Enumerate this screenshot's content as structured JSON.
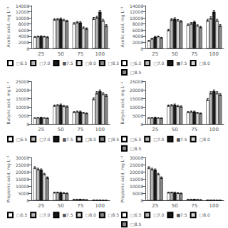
{
  "chart_data": [
    {
      "type": "bar",
      "y_label": "Acetic acid, mg L⁻¹",
      "categories": [
        "25",
        "50",
        "75",
        "100"
      ],
      "ylim": [
        0,
        14000
      ],
      "yticks": [
        0,
        2000,
        4000,
        6000,
        8000,
        10000,
        12000,
        14000
      ],
      "grid": false,
      "legend": "bottom",
      "series": [
        {
          "name": "□6.5",
          "color": "white",
          "values": [
            3800,
            9500,
            8200,
            9800
          ],
          "errors": [
            150,
            250,
            250,
            350
          ]
        },
        {
          "name": "□7.0",
          "color": "#b8b8b8",
          "values": [
            3900,
            9600,
            8600,
            10200
          ],
          "errors": [
            150,
            250,
            250,
            350
          ]
        },
        {
          "name": "■7.5",
          "color": "#1a1a1a",
          "values": [
            4000,
            9700,
            8500,
            12000
          ],
          "errors": [
            150,
            300,
            280,
            450
          ]
        },
        {
          "name": "□8.0",
          "color": "#d8d8d8",
          "values": [
            3900,
            9300,
            6800,
            9200
          ],
          "errors": [
            150,
            250,
            250,
            350
          ]
        },
        {
          "name": "□8.5",
          "color": "#888888",
          "values": [
            3700,
            9000,
            6500,
            7500
          ],
          "errors": [
            150,
            250,
            250,
            300
          ]
        }
      ]
    },
    {
      "type": "bar",
      "y_label": "Acetic acid, mg L⁻¹",
      "categories": [
        "25",
        "50",
        "75",
        "100"
      ],
      "ylim": [
        0,
        14000
      ],
      "yticks": [
        0,
        2000,
        4000,
        6000,
        8000,
        10000,
        12000,
        14000
      ],
      "grid": false,
      "legend": "bottom",
      "series": [
        {
          "name": "□6.5",
          "color": "white",
          "values": [
            2500,
            6000,
            7800,
            9200
          ],
          "errors": [
            150,
            250,
            250,
            350
          ]
        },
        {
          "name": "□7.0",
          "color": "#b8b8b8",
          "values": [
            3200,
            9500,
            8200,
            10000
          ],
          "errors": [
            150,
            350,
            280,
            400
          ]
        },
        {
          "name": "■7.5",
          "color": "#1a1a1a",
          "values": [
            3800,
            9700,
            8700,
            12000
          ],
          "errors": [
            150,
            350,
            280,
            450
          ]
        },
        {
          "name": "□8.0",
          "color": "#d8d8d8",
          "values": [
            3900,
            9200,
            7500,
            9200
          ],
          "errors": [
            150,
            250,
            250,
            350
          ]
        },
        {
          "name": "□8.5",
          "color": "#888888",
          "values": [
            3500,
            8900,
            7000,
            7500
          ],
          "errors": [
            150,
            250,
            250,
            300
          ]
        }
      ]
    },
    {
      "type": "bar",
      "y_label": "Butyric acid, mg L⁻¹",
      "categories": [
        "25",
        "50",
        "75",
        "100"
      ],
      "ylim": [
        0,
        25000
      ],
      "yticks": [
        0,
        5000,
        10000,
        15000,
        20000,
        25000
      ],
      "grid": false,
      "legend": "bottom",
      "series": [
        {
          "name": "□6.5",
          "color": "white",
          "values": [
            3800,
            11000,
            7200,
            15000
          ],
          "errors": [
            200,
            400,
            300,
            600
          ]
        },
        {
          "name": "□7.0",
          "color": "#b8b8b8",
          "values": [
            3900,
            11200,
            7500,
            18500
          ],
          "errors": [
            200,
            400,
            300,
            700
          ]
        },
        {
          "name": "■7.5",
          "color": "#1a1a1a",
          "values": [
            4100,
            11500,
            7500,
            19500
          ],
          "errors": [
            200,
            450,
            300,
            700
          ]
        },
        {
          "name": "□8.0",
          "color": "#d8d8d8",
          "values": [
            3800,
            10800,
            6800,
            18000
          ],
          "errors": [
            200,
            400,
            300,
            650
          ]
        },
        {
          "name": "□8.5",
          "color": "#888888",
          "values": [
            3700,
            10500,
            6500,
            17000
          ],
          "errors": [
            200,
            400,
            300,
            600
          ]
        }
      ]
    },
    {
      "type": "bar",
      "y_label": "Butyric acid, mg L⁻¹",
      "categories": [
        "25",
        "50",
        "75",
        "100"
      ],
      "ylim": [
        0,
        25000
      ],
      "yticks": [
        0,
        5000,
        10000,
        15000,
        20000,
        25000
      ],
      "grid": false,
      "legend": "bottom",
      "series": [
        {
          "name": "□6.5",
          "color": "white",
          "values": [
            3800,
            11000,
            7200,
            14500
          ],
          "errors": [
            200,
            400,
            300,
            600
          ]
        },
        {
          "name": "□7.0",
          "color": "#b8b8b8",
          "values": [
            3900,
            11200,
            7500,
            18500
          ],
          "errors": [
            200,
            400,
            300,
            700
          ]
        },
        {
          "name": "■7.5",
          "color": "#1a1a1a",
          "values": [
            4100,
            11500,
            7500,
            19500
          ],
          "errors": [
            200,
            450,
            300,
            700
          ]
        },
        {
          "name": "□8.0",
          "color": "#d8d8d8",
          "values": [
            3800,
            10800,
            6800,
            18500
          ],
          "errors": [
            200,
            400,
            300,
            650
          ]
        },
        {
          "name": "□8.5",
          "color": "#888888",
          "values": [
            3700,
            10500,
            6500,
            17500
          ],
          "errors": [
            200,
            400,
            300,
            600
          ]
        }
      ]
    },
    {
      "type": "bar",
      "y_label": "Propionic acid, mg L⁻¹",
      "categories": [
        "25",
        "50",
        "75",
        "100"
      ],
      "ylim": [
        0,
        30000
      ],
      "yticks": [
        0,
        5000,
        10000,
        15000,
        20000,
        25000,
        30000
      ],
      "grid": false,
      "legend": "bottom",
      "series": [
        {
          "name": "□6.5",
          "color": "white",
          "values": [
            23000,
            5500,
            800,
            150
          ],
          "errors": [
            700,
            300,
            100,
            30
          ]
        },
        {
          "name": "□7.0",
          "color": "#b8b8b8",
          "values": [
            22000,
            5600,
            800,
            150
          ],
          "errors": [
            650,
            300,
            100,
            30
          ]
        },
        {
          "name": "■7.5",
          "color": "#1a1a1a",
          "values": [
            21500,
            5500,
            800,
            150
          ],
          "errors": [
            650,
            300,
            100,
            30
          ]
        },
        {
          "name": "□8.0",
          "color": "#d8d8d8",
          "values": [
            18500,
            5200,
            650,
            100
          ],
          "errors": [
            600,
            280,
            80,
            25
          ]
        },
        {
          "name": "□8.5",
          "color": "#888888",
          "values": [
            16000,
            5000,
            500,
            80
          ],
          "errors": [
            550,
            260,
            70,
            20
          ]
        }
      ]
    },
    {
      "type": "bar",
      "y_label": "Propionic acid, mg L⁻¹",
      "categories": [
        "25",
        "50",
        "75",
        "100"
      ],
      "ylim": [
        0,
        30000
      ],
      "yticks": [
        0,
        5000,
        10000,
        15000,
        20000,
        25000,
        30000
      ],
      "grid": false,
      "legend": "bottom",
      "series": [
        {
          "name": "□6.5",
          "color": "white",
          "values": [
            23000,
            5500,
            800,
            150
          ],
          "errors": [
            700,
            300,
            100,
            30
          ]
        },
        {
          "name": "□7.0",
          "color": "#b8b8b8",
          "values": [
            22000,
            5600,
            800,
            150
          ],
          "errors": [
            650,
            300,
            100,
            30
          ]
        },
        {
          "name": "■7.5",
          "color": "#1a1a1a",
          "values": [
            21500,
            5500,
            800,
            150
          ],
          "errors": [
            650,
            300,
            100,
            30
          ]
        },
        {
          "name": "□8.0",
          "color": "#d8d8d8",
          "values": [
            18500,
            5200,
            650,
            100
          ],
          "errors": [
            600,
            280,
            80,
            25
          ]
        },
        {
          "name": "□8.5",
          "color": "#888888",
          "values": [
            16000,
            5000,
            500,
            80
          ],
          "errors": [
            550,
            260,
            70,
            20
          ]
        }
      ]
    }
  ]
}
